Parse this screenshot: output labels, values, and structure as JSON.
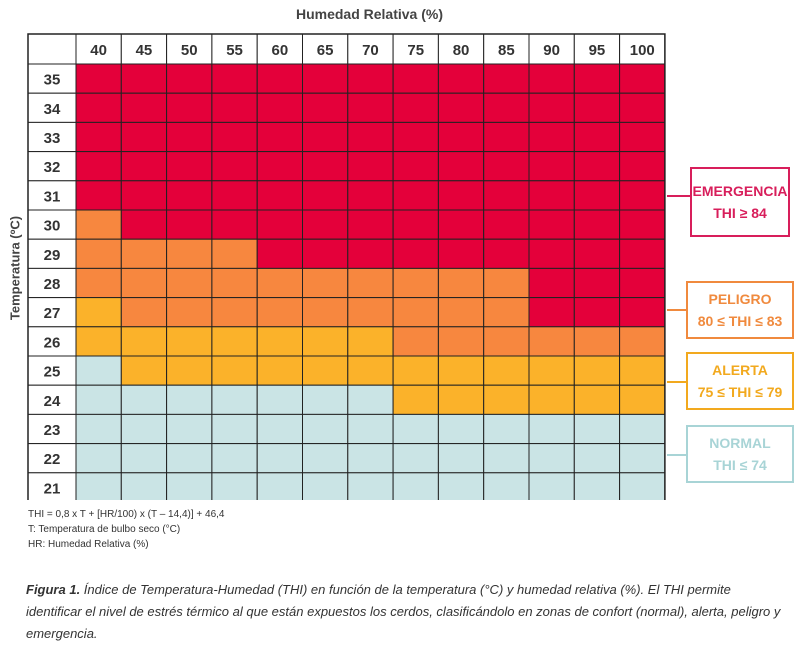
{
  "chart_data": {
    "type": "heatmap",
    "title": "Humedad Relativa (%)",
    "xlabel": "Humedad Relativa (%)",
    "ylabel": "Temperatura (ºC)",
    "x": [
      "40",
      "45",
      "50",
      "55",
      "60",
      "65",
      "70",
      "75",
      "80",
      "85",
      "90",
      "95",
      "100"
    ],
    "y": [
      "35",
      "34",
      "33",
      "32",
      "31",
      "30",
      "29",
      "28",
      "27",
      "26",
      "25",
      "24",
      "23",
      "22",
      "21"
    ],
    "zones": [
      "normal",
      "alerta",
      "peligro",
      "emergencia"
    ],
    "cells": [
      [
        "emergencia",
        "emergencia",
        "emergencia",
        "emergencia",
        "emergencia",
        "emergencia",
        "emergencia",
        "emergencia",
        "emergencia",
        "emergencia",
        "emergencia",
        "emergencia",
        "emergencia"
      ],
      [
        "emergencia",
        "emergencia",
        "emergencia",
        "emergencia",
        "emergencia",
        "emergencia",
        "emergencia",
        "emergencia",
        "emergencia",
        "emergencia",
        "emergencia",
        "emergencia",
        "emergencia"
      ],
      [
        "emergencia",
        "emergencia",
        "emergencia",
        "emergencia",
        "emergencia",
        "emergencia",
        "emergencia",
        "emergencia",
        "emergencia",
        "emergencia",
        "emergencia",
        "emergencia",
        "emergencia"
      ],
      [
        "emergencia",
        "emergencia",
        "emergencia",
        "emergencia",
        "emergencia",
        "emergencia",
        "emergencia",
        "emergencia",
        "emergencia",
        "emergencia",
        "emergencia",
        "emergencia",
        "emergencia"
      ],
      [
        "emergencia",
        "emergencia",
        "emergencia",
        "emergencia",
        "emergencia",
        "emergencia",
        "emergencia",
        "emergencia",
        "emergencia",
        "emergencia",
        "emergencia",
        "emergencia",
        "emergencia"
      ],
      [
        "peligro",
        "emergencia",
        "emergencia",
        "emergencia",
        "emergencia",
        "emergencia",
        "emergencia",
        "emergencia",
        "emergencia",
        "emergencia",
        "emergencia",
        "emergencia",
        "emergencia"
      ],
      [
        "peligro",
        "peligro",
        "peligro",
        "peligro",
        "emergencia",
        "emergencia",
        "emergencia",
        "emergencia",
        "emergencia",
        "emergencia",
        "emergencia",
        "emergencia",
        "emergencia"
      ],
      [
        "peligro",
        "peligro",
        "peligro",
        "peligro",
        "peligro",
        "peligro",
        "peligro",
        "peligro",
        "peligro",
        "peligro",
        "emergencia",
        "emergencia",
        "emergencia"
      ],
      [
        "alerta",
        "peligro",
        "peligro",
        "peligro",
        "peligro",
        "peligro",
        "peligro",
        "peligro",
        "peligro",
        "peligro",
        "emergencia",
        "emergencia",
        "emergencia"
      ],
      [
        "alerta",
        "alerta",
        "alerta",
        "alerta",
        "alerta",
        "alerta",
        "alerta",
        "peligro",
        "peligro",
        "peligro",
        "peligro",
        "peligro",
        "peligro"
      ],
      [
        "normal",
        "alerta",
        "alerta",
        "alerta",
        "alerta",
        "alerta",
        "alerta",
        "alerta",
        "alerta",
        "alerta",
        "alerta",
        "alerta",
        "alerta"
      ],
      [
        "normal",
        "normal",
        "normal",
        "normal",
        "normal",
        "normal",
        "normal",
        "alerta",
        "alerta",
        "alerta",
        "alerta",
        "alerta",
        "alerta"
      ],
      [
        "normal",
        "normal",
        "normal",
        "normal",
        "normal",
        "normal",
        "normal",
        "normal",
        "normal",
        "normal",
        "normal",
        "normal",
        "normal"
      ],
      [
        "normal",
        "normal",
        "normal",
        "normal",
        "normal",
        "normal",
        "normal",
        "normal",
        "normal",
        "normal",
        "normal",
        "normal",
        "normal"
      ],
      [
        "normal",
        "normal",
        "normal",
        "normal",
        "normal",
        "normal",
        "normal",
        "normal",
        "normal",
        "normal",
        "normal",
        "normal",
        "normal"
      ]
    ],
    "legend_placement": "right"
  },
  "colors": {
    "emergencia": "#E4003A",
    "peligro": "#F7873F",
    "alerta": "#FBB22A",
    "normal": "#CAE4E5",
    "emergencia_text": "#D81E5B",
    "peligro_text": "#F08A3E",
    "alerta_text": "#F2A91E",
    "normal_text": "#A8D4D6"
  },
  "legend": {
    "emergencia": {
      "name": "EMERGENCIA",
      "range": "THI ≥ 84"
    },
    "peligro": {
      "name": "PELIGRO",
      "range": "80 ≤ THI ≤ 83"
    },
    "alerta": {
      "name": "ALERTA",
      "range": "75 ≤ THI ≤ 79"
    },
    "normal": {
      "name": "NORMAL",
      "range": "THI ≤ 74"
    }
  },
  "formula": {
    "line1": "THI = 0,8 x T + [HR/100) x (T – 14,4)] + 46,4",
    "line2": "T: Temperatura de bulbo seco (°C)",
    "line3": "HR: Humedad Relativa (%)"
  },
  "caption": {
    "label": "Figura 1.",
    "text": " Índice de Temperatura-Humedad (THI) en función de la temperatura (°C) y humedad relativa (%). El THI permite identificar el nivel de estrés térmico al que están expuestos los cerdos, clasificándolo en zonas de confort (normal), alerta, peligro y emergencia."
  }
}
